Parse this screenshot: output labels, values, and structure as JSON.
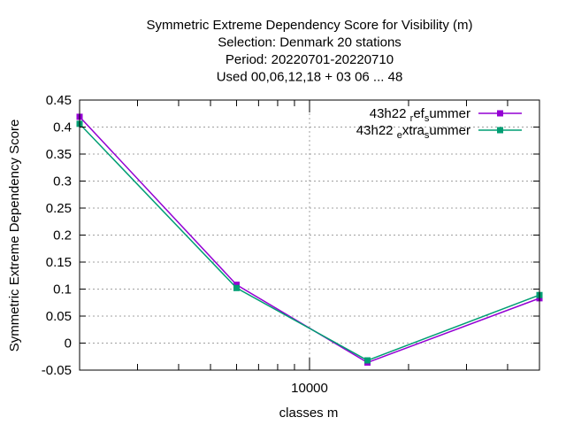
{
  "title_lines": [
    "Symmetric Extreme Dependency Score  for Visibility (m)",
    "Selection: Denmark     20 stations",
    "Period: 20220701-20220710",
    "Used  00,06,12,18  + 03 06 ... 48"
  ],
  "chart_data": {
    "type": "line",
    "title": "Symmetric Extreme Dependency Score  for Visibility (m)",
    "xlabel": "classes m",
    "ylabel": "Symmetric Extreme Dependency Score",
    "x_scale": "log",
    "xlim": [
      2000,
      50000
    ],
    "ylim": [
      -0.05,
      0.45
    ],
    "y_ticks": [
      "-0.05",
      "0",
      "0.05",
      "0.1",
      "0.15",
      "0.2",
      "0.25",
      "0.3",
      "0.35",
      "0.4",
      "0.45"
    ],
    "x_ticks": [
      "10000"
    ],
    "grid": true,
    "legend_position": "top-right",
    "series": [
      {
        "name_parts": [
          [
            "43h22 ",
            "base"
          ],
          [
            "r",
            "sub"
          ],
          [
            "ef",
            "base"
          ],
          [
            "s",
            "sub"
          ],
          [
            "ummer",
            "base"
          ]
        ],
        "color": "#9400d3",
        "x": [
          2000,
          6000,
          15000,
          50000
        ],
        "y": [
          0.419,
          0.108,
          -0.036,
          0.083
        ]
      },
      {
        "name_parts": [
          [
            "43h22 ",
            "base"
          ],
          [
            "e",
            "sub"
          ],
          [
            "xtra",
            "base"
          ],
          [
            "s",
            "sub"
          ],
          [
            "ummer",
            "base"
          ]
        ],
        "color": "#009e73",
        "x": [
          2000,
          6000,
          15000,
          50000
        ],
        "y": [
          0.406,
          0.102,
          -0.032,
          0.089
        ]
      }
    ]
  }
}
